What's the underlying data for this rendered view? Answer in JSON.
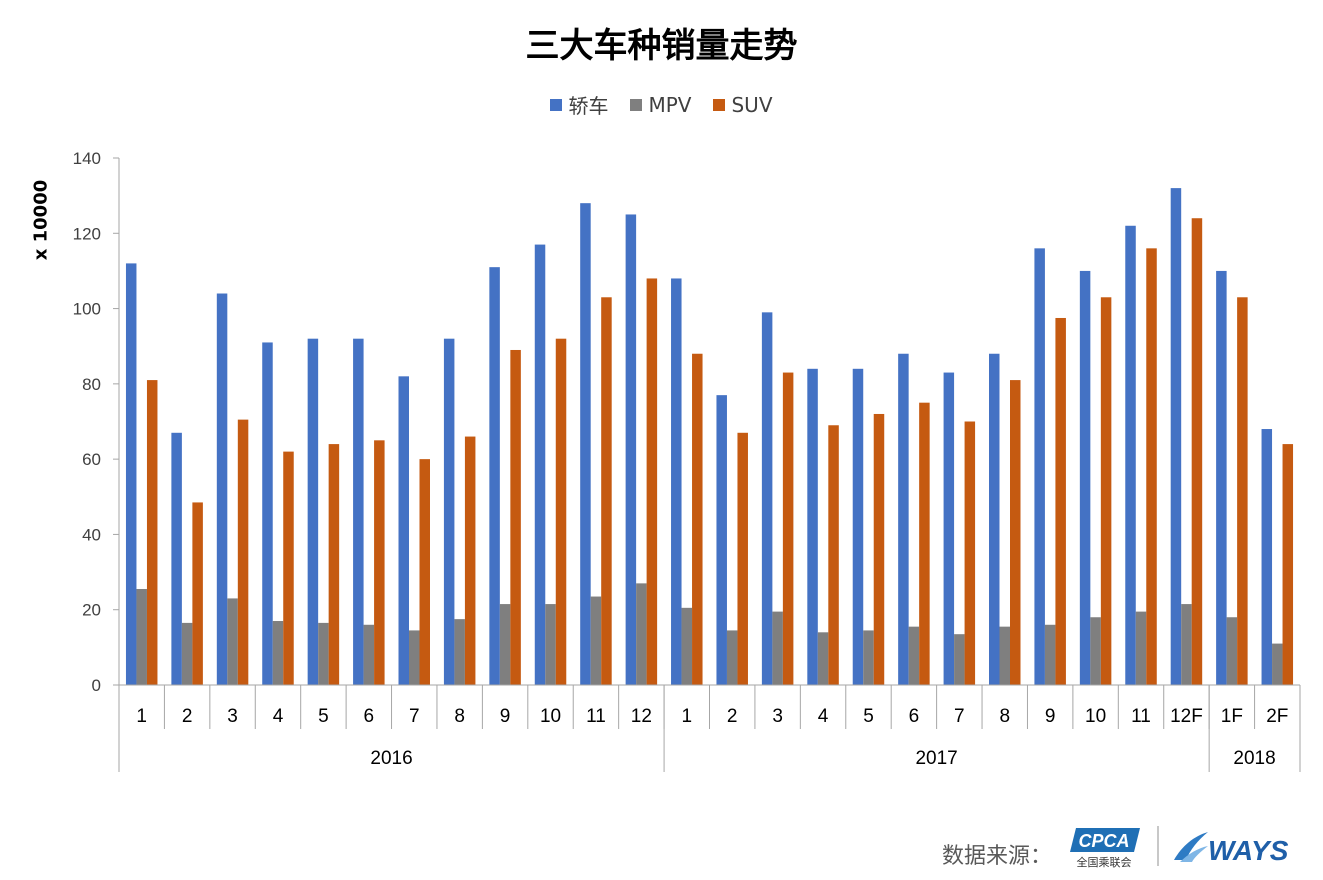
{
  "chart_data": {
    "type": "bar",
    "title": "三大车种销量走势",
    "ylabel": "x 10000",
    "ylim": [
      0,
      140
    ],
    "yticks": [
      0,
      20,
      40,
      60,
      80,
      100,
      120,
      140
    ],
    "grid": false,
    "legend_position": "top",
    "categories": [
      "1",
      "2",
      "3",
      "4",
      "5",
      "6",
      "7",
      "8",
      "9",
      "10",
      "11",
      "12",
      "1",
      "2",
      "3",
      "4",
      "5",
      "6",
      "7",
      "8",
      "9",
      "10",
      "11",
      "12F",
      "1F",
      "2F"
    ],
    "groups": [
      {
        "label": "2016",
        "count": 12
      },
      {
        "label": "2017",
        "count": 12
      },
      {
        "label": "2018",
        "count": 2
      }
    ],
    "series": [
      {
        "name": "轿车",
        "color": "#4472C4",
        "values": [
          112,
          67,
          104,
          91,
          92,
          92,
          82,
          92,
          111,
          117,
          128,
          125,
          108,
          77,
          99,
          84,
          84,
          88,
          83,
          88,
          116,
          110,
          122,
          132,
          110,
          68
        ]
      },
      {
        "name": "MPV",
        "color": "#7F7F7F",
        "values": [
          25.5,
          16.5,
          23,
          17,
          16.5,
          16,
          14.5,
          17.5,
          21.5,
          21.5,
          23.5,
          27,
          20.5,
          14.5,
          19.5,
          14,
          14.5,
          15.5,
          13.5,
          15.5,
          16,
          18,
          19.5,
          21.5,
          18,
          11
        ]
      },
      {
        "name": "SUV",
        "color": "#C55A11",
        "values": [
          81,
          48.5,
          70.5,
          62,
          64,
          65,
          60,
          66,
          89,
          92,
          103,
          108,
          88,
          67,
          83,
          69,
          72,
          75,
          70,
          81,
          97.5,
          103,
          116,
          124,
          103,
          64
        ]
      }
    ]
  },
  "footer": {
    "source_label": "数据来源：",
    "logo_cpca_text": "CPCA",
    "logo_cpca_subtext": "全国乘联会",
    "logo_ways_text": "WAYS"
  }
}
